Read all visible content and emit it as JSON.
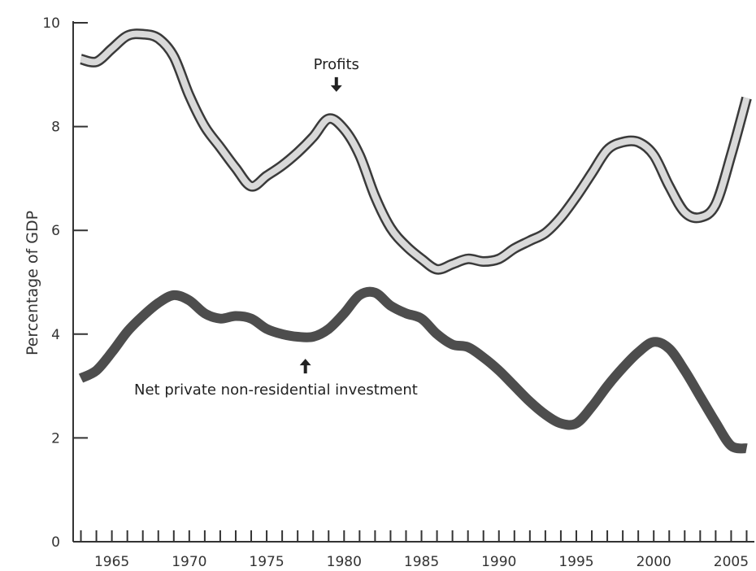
{
  "chart_data": {
    "type": "line",
    "ylabel": "Percentage of GDP",
    "ylim": [
      0,
      10
    ],
    "xlim": [
      1962.5,
      2006.5
    ],
    "yticks": [
      0,
      2,
      4,
      6,
      8,
      10
    ],
    "xtick_labels": [
      1965,
      1970,
      1975,
      1980,
      1985,
      1990,
      1995,
      2000,
      2005
    ],
    "x": [
      1963,
      1964,
      1965,
      1966,
      1967,
      1968,
      1969,
      1970,
      1971,
      1972,
      1973,
      1974,
      1975,
      1976,
      1977,
      1978,
      1979,
      1980,
      1981,
      1982,
      1983,
      1984,
      1985,
      1986,
      1987,
      1988,
      1989,
      1990,
      1991,
      1992,
      1993,
      1994,
      1995,
      1996,
      1997,
      1998,
      1999,
      2000,
      2001,
      2002,
      2003,
      2004,
      2005,
      2006
    ],
    "series": [
      {
        "name": "Profits",
        "color": "#d9d9d9",
        "outline": "#3a3a3a",
        "values": [
          9.3,
          9.25,
          9.5,
          9.75,
          9.78,
          9.7,
          9.35,
          8.6,
          8.0,
          7.6,
          7.2,
          6.85,
          7.05,
          7.25,
          7.5,
          7.8,
          8.15,
          7.95,
          7.45,
          6.65,
          6.05,
          5.7,
          5.45,
          5.25,
          5.35,
          5.45,
          5.4,
          5.45,
          5.65,
          5.8,
          5.95,
          6.25,
          6.65,
          7.1,
          7.55,
          7.7,
          7.7,
          7.45,
          6.85,
          6.35,
          6.25,
          6.5,
          7.45,
          8.55
        ]
      },
      {
        "name": "Net private non-residential investment",
        "color": "#4d4d4d",
        "values": [
          3.15,
          3.3,
          3.65,
          4.05,
          4.35,
          4.6,
          4.75,
          4.65,
          4.4,
          4.3,
          4.35,
          4.3,
          4.1,
          4.0,
          3.95,
          3.95,
          4.1,
          4.4,
          4.75,
          4.8,
          4.55,
          4.4,
          4.3,
          4.0,
          3.8,
          3.75,
          3.55,
          3.3,
          3.0,
          2.7,
          2.45,
          2.28,
          2.28,
          2.6,
          3.0,
          3.35,
          3.65,
          3.85,
          3.72,
          3.3,
          2.8,
          2.3,
          1.85,
          1.8
        ]
      }
    ],
    "annotations": [
      {
        "text": "Profits",
        "target_series": "Profits",
        "x": 1979.5,
        "value": 8.2,
        "arrow": "down"
      },
      {
        "text": "Net private non-residential investment",
        "target_series": "Net private non-residential investment",
        "x": 1977.5,
        "value": 3.9,
        "arrow": "up"
      }
    ],
    "grid": false,
    "legend": "none"
  }
}
